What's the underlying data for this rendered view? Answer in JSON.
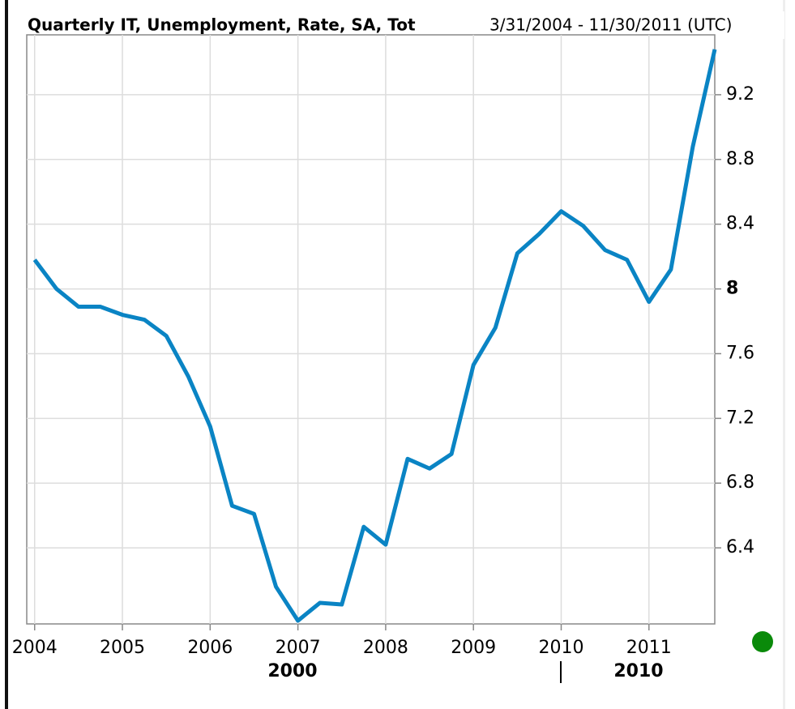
{
  "chart_data": {
    "type": "line",
    "title": "Quarterly IT, Unemployment, Rate, SA, Tot",
    "subtitle": "3/31/2004 - 11/30/2011 (UTC)",
    "x": [
      2004.0,
      2004.25,
      2004.5,
      2004.75,
      2005.0,
      2005.25,
      2005.5,
      2005.75,
      2006.0,
      2006.25,
      2006.5,
      2006.75,
      2007.0,
      2007.25,
      2007.5,
      2007.75,
      2008.0,
      2008.25,
      2008.5,
      2008.75,
      2009.0,
      2009.25,
      2009.5,
      2009.75,
      2010.0,
      2010.25,
      2010.5,
      2010.75,
      2011.0,
      2011.25,
      2011.5,
      2011.75
    ],
    "series": [
      {
        "name": "Quarterly IT, Unemployment, Rate, SA, Tot",
        "color": "#0a84c4",
        "values": [
          8.18,
          8.0,
          7.89,
          7.89,
          7.84,
          7.81,
          7.71,
          7.46,
          7.15,
          6.66,
          6.61,
          6.16,
          5.95,
          6.06,
          6.05,
          6.53,
          6.42,
          6.95,
          6.89,
          6.98,
          7.53,
          7.76,
          8.22,
          8.34,
          8.48,
          8.39,
          8.24,
          8.18,
          7.92,
          8.12,
          8.88,
          9.48
        ]
      }
    ],
    "xlim": [
      2003.91,
      2011.75
    ],
    "xticks": [
      2004,
      2005,
      2006,
      2007,
      2008,
      2009,
      2010,
      2011
    ],
    "ylim": [
      5.93,
      9.57
    ],
    "yticks": [
      6.4,
      6.8,
      7.2,
      7.6,
      8,
      8.4,
      8.8,
      9.2
    ],
    "x_group_labels": [
      "2000",
      "2010"
    ],
    "grid": true
  }
}
